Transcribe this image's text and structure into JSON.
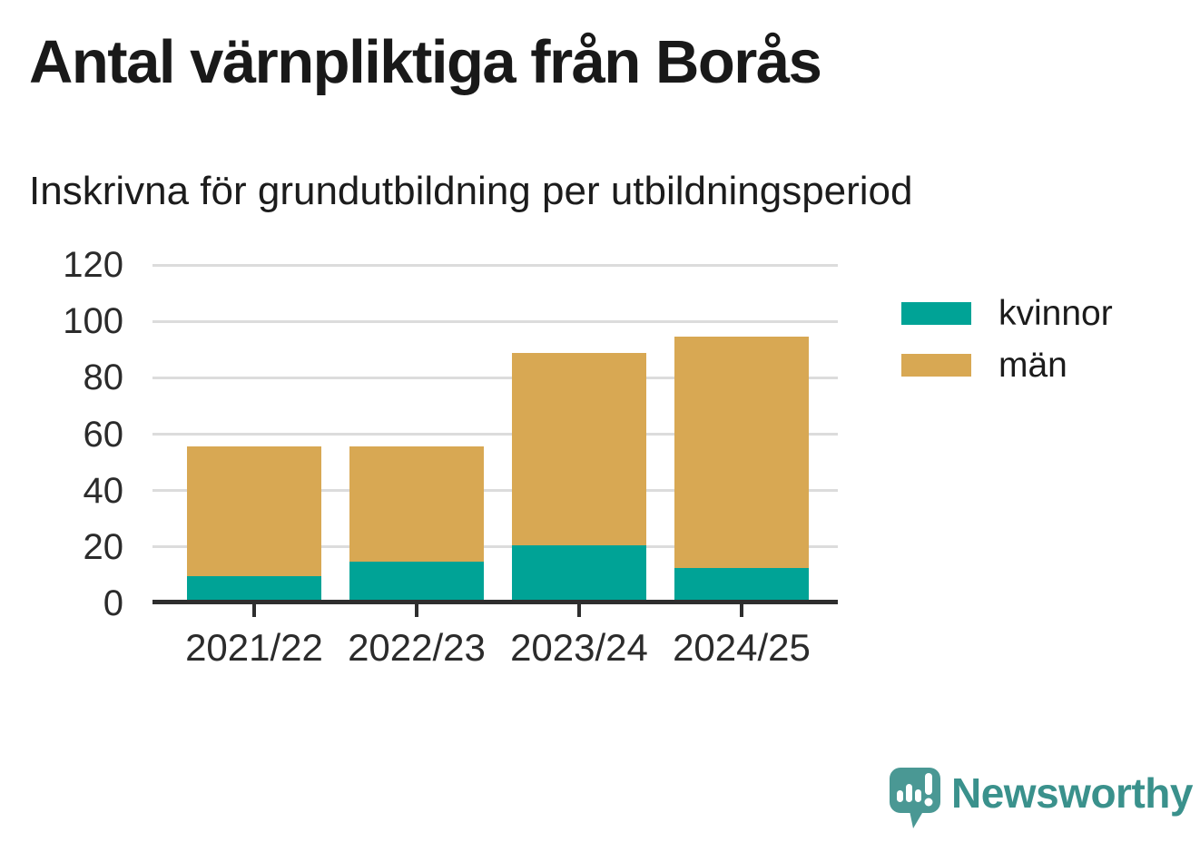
{
  "title": "Antal värnpliktiga från Borås",
  "subtitle": "Inskrivna för grundutbildning per utbildningsperiod",
  "chart_data": {
    "type": "bar",
    "stacked": true,
    "title": "Antal värnpliktiga från Borås",
    "subtitle": "Inskrivna för grundutbildning per utbildningsperiod",
    "categories": [
      "2021/22",
      "2022/23",
      "2023/24",
      "2024/25"
    ],
    "series": [
      {
        "name": "kvinnor",
        "color": "#00a396",
        "values": [
          9,
          14,
          20,
          12
        ]
      },
      {
        "name": "män",
        "color": "#d8a853",
        "values": [
          46,
          41,
          68,
          82
        ]
      }
    ],
    "totals": [
      55,
      55,
      88,
      94
    ],
    "xlabel": "",
    "ylabel": "",
    "ylim": [
      0,
      120
    ],
    "yticks": [
      0,
      20,
      40,
      60,
      80,
      100,
      120
    ],
    "grid": true,
    "grid_color": "#dcdcdc",
    "axis_color": "#2e2e2e",
    "legend_position": "right"
  },
  "branding": {
    "logo_text": "Newsworthy",
    "logo_color": "#3a918c",
    "logo_icon": "speech-bubble-bar-chart-exclamation",
    "logo_icon_color": "#4a9894"
  }
}
